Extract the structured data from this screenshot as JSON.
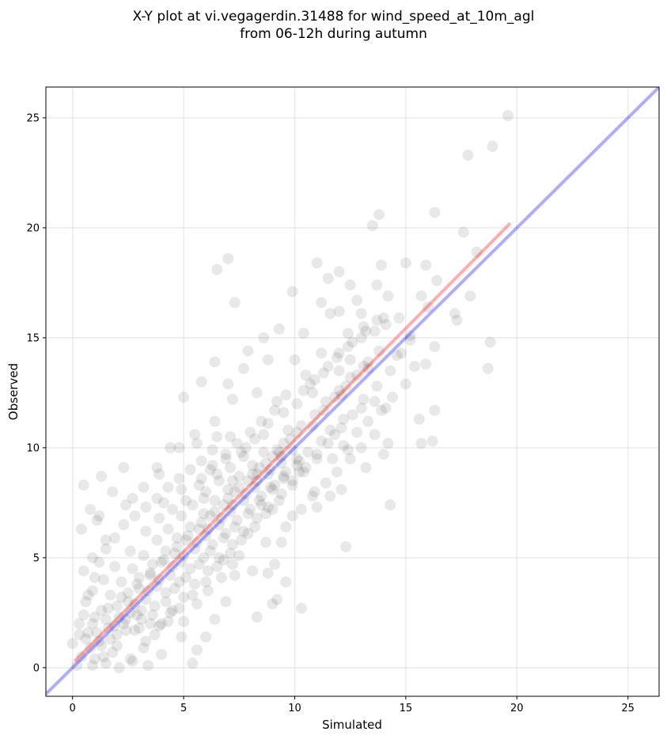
{
  "chart_data": {
    "type": "scatter",
    "title_line1": "X-Y plot at vi.vegagerdin.31488 for wind_speed_at_10m_agl",
    "title_line2": "from 06-12h during autumn",
    "xlabel": "Simulated",
    "ylabel": "Observed",
    "xlim": [
      -1.2,
      26.4
    ],
    "ylim": [
      -1.3,
      26.4
    ],
    "xticks": [
      0,
      5,
      10,
      15,
      20,
      25
    ],
    "yticks": [
      0,
      5,
      10,
      15,
      20,
      25
    ],
    "grid": true,
    "point_color": "#000000",
    "point_opacity": 0.09,
    "identity_line": {
      "color": "#0000ff",
      "opacity": 0.32,
      "from": [
        -1.2,
        -1.2
      ],
      "to": [
        26.4,
        26.4
      ]
    },
    "fit_line": {
      "color": "#ff0000",
      "opacity": 0.32,
      "from": [
        0.1,
        0.3
      ],
      "to": [
        19.7,
        20.2
      ]
    },
    "points": [
      [
        19.6,
        25.1
      ],
      [
        17.8,
        23.3
      ],
      [
        18.9,
        23.7
      ],
      [
        16.3,
        20.7
      ],
      [
        13.5,
        20.1
      ],
      [
        13.8,
        20.6
      ],
      [
        17.6,
        19.8
      ],
      [
        6.5,
        18.1
      ],
      [
        7.0,
        18.6
      ],
      [
        11.0,
        18.4
      ],
      [
        15.0,
        18.4
      ],
      [
        13.9,
        18.3
      ],
      [
        12.0,
        18.0
      ],
      [
        15.9,
        18.3
      ],
      [
        16.4,
        17.6
      ],
      [
        17.9,
        16.9
      ],
      [
        18.2,
        18.9
      ],
      [
        11.5,
        17.7
      ],
      [
        12.5,
        17.4
      ],
      [
        9.9,
        17.1
      ],
      [
        7.3,
        16.6
      ],
      [
        13.7,
        17.4
      ],
      [
        12.8,
        16.7
      ],
      [
        14.2,
        16.9
      ],
      [
        17.2,
        16.1
      ],
      [
        17.3,
        15.8
      ],
      [
        15.7,
        16.9
      ],
      [
        16.0,
        16.4
      ],
      [
        13.0,
        16.1
      ],
      [
        11.6,
        16.1
      ],
      [
        12.0,
        16.2
      ],
      [
        11.2,
        16.6
      ],
      [
        9.3,
        15.4
      ],
      [
        10.4,
        15.2
      ],
      [
        8.6,
        15.0
      ],
      [
        13.1,
        15.5
      ],
      [
        14.0,
        15.9
      ],
      [
        12.4,
        15.2
      ],
      [
        18.8,
        14.8
      ],
      [
        15.2,
        14.9
      ],
      [
        16.3,
        14.6
      ],
      [
        10.0,
        14.0
      ],
      [
        11.2,
        14.3
      ],
      [
        8.8,
        14.0
      ],
      [
        7.9,
        14.4
      ],
      [
        6.4,
        13.9
      ],
      [
        7.7,
        13.6
      ],
      [
        12.5,
        14.0
      ],
      [
        14.6,
        14.2
      ],
      [
        15.9,
        13.8
      ],
      [
        15.4,
        13.7
      ],
      [
        18.7,
        13.6
      ],
      [
        10.5,
        13.3
      ],
      [
        13.3,
        13.6
      ],
      [
        12.0,
        13.5
      ],
      [
        7.0,
        12.9
      ],
      [
        8.3,
        12.5
      ],
      [
        5.8,
        13.0
      ],
      [
        7.2,
        12.2
      ],
      [
        6.4,
        11.2
      ],
      [
        9.2,
        12.1
      ],
      [
        10.8,
        12.5
      ],
      [
        12.1,
        12.4
      ],
      [
        13.6,
        12.1
      ],
      [
        13.0,
        11.8
      ],
      [
        14.1,
        11.8
      ],
      [
        16.3,
        11.7
      ],
      [
        15.6,
        11.3
      ],
      [
        14.2,
        10.2
      ],
      [
        16.2,
        10.3
      ],
      [
        15.7,
        10.2
      ],
      [
        14.0,
        9.7
      ],
      [
        12.4,
        9.9
      ],
      [
        11.8,
        10.6
      ],
      [
        13.2,
        9.1
      ],
      [
        12.1,
        8.1
      ],
      [
        10.9,
        8.0
      ],
      [
        11.6,
        7.8
      ],
      [
        14.3,
        7.4
      ],
      [
        12.3,
        5.5
      ],
      [
        10.3,
        2.7
      ],
      [
        8.3,
        2.3
      ],
      [
        9.0,
        2.9
      ],
      [
        9.1,
        4.7
      ],
      [
        11.0,
        7.3
      ],
      [
        10.1,
        9.5
      ],
      [
        9.3,
        9.8
      ],
      [
        9.7,
        10.8
      ],
      [
        8.6,
        10.6
      ],
      [
        7.8,
        10.0
      ],
      [
        7.1,
        10.5
      ],
      [
        6.5,
        10.5
      ],
      [
        5.5,
        10.6
      ],
      [
        5.6,
        10.2
      ],
      [
        4.8,
        10.0
      ],
      [
        4.4,
        10.0
      ],
      [
        5.0,
        12.3
      ],
      [
        3.8,
        9.1
      ],
      [
        2.3,
        9.1
      ],
      [
        1.3,
        8.7
      ],
      [
        0.5,
        8.3
      ],
      [
        0.4,
        6.3
      ],
      [
        0.8,
        7.2
      ],
      [
        1.2,
        6.9
      ],
      [
        1.1,
        6.7
      ],
      [
        1.5,
        5.8
      ],
      [
        0.9,
        5.0
      ],
      [
        0.5,
        4.4
      ],
      [
        1.8,
        8.0
      ],
      [
        2.4,
        7.4
      ],
      [
        2.7,
        7.7
      ],
      [
        3.2,
        8.2
      ],
      [
        4.1,
        7.5
      ],
      [
        4.9,
        8.1
      ],
      [
        3.9,
        8.8
      ],
      [
        5.9,
        7.7
      ],
      [
        6.5,
        8.8
      ],
      [
        7.2,
        8.5
      ],
      [
        8.3,
        8.8
      ],
      [
        8.9,
        8.2
      ],
      [
        9.5,
        8.6
      ],
      [
        10.2,
        8.9
      ],
      [
        9.0,
        7.2
      ],
      [
        8.5,
        7.4
      ],
      [
        9.6,
        6.4
      ],
      [
        9.9,
        6.9
      ],
      [
        9.4,
        5.7
      ],
      [
        8.7,
        5.7
      ],
      [
        7.9,
        6.1
      ],
      [
        7.5,
        5.1
      ],
      [
        8.1,
        4.4
      ],
      [
        8.8,
        4.3
      ],
      [
        9.6,
        3.9
      ],
      [
        9.2,
        3.1
      ],
      [
        7.3,
        4.2
      ],
      [
        6.8,
        4.9
      ],
      [
        6.9,
        3.0
      ],
      [
        6.4,
        2.2
      ],
      [
        6.0,
        1.4
      ],
      [
        5.6,
        0.8
      ],
      [
        5.4,
        0.2
      ],
      [
        4.9,
        1.4
      ],
      [
        4.0,
        0.6
      ],
      [
        3.4,
        0.1
      ],
      [
        2.7,
        0.3
      ],
      [
        2.1,
        0.0
      ],
      [
        1.5,
        0.2
      ],
      [
        0.9,
        0.1
      ],
      [
        0.2,
        0.1
      ],
      [
        0.0,
        1.1
      ],
      [
        0.3,
        2.0
      ],
      [
        0.6,
        3.0
      ],
      [
        0.9,
        3.5
      ],
      [
        1.4,
        4.0
      ],
      [
        1.9,
        4.6
      ],
      [
        2.6,
        5.3
      ],
      [
        3.3,
        6.2
      ],
      [
        3.9,
        6.8
      ],
      [
        4.5,
        7.2
      ],
      [
        5.1,
        7.6
      ],
      [
        5.7,
        8.3
      ],
      [
        6.2,
        9.0
      ],
      [
        6.9,
        9.5
      ],
      [
        7.6,
        9.8
      ],
      [
        8.2,
        10.4
      ],
      [
        8.8,
        11.1
      ],
      [
        9.5,
        11.6
      ],
      [
        10.1,
        12.0
      ],
      [
        10.7,
        12.9
      ],
      [
        11.3,
        13.4
      ],
      [
        11.9,
        14.1
      ],
      [
        12.4,
        14.6
      ],
      [
        13.0,
        15.0
      ],
      [
        13.6,
        15.3
      ],
      [
        14.1,
        15.6
      ],
      [
        14.7,
        15.9
      ],
      [
        15.2,
        15.1
      ],
      [
        14.8,
        14.3
      ],
      [
        14.3,
        13.5
      ],
      [
        13.7,
        12.8
      ],
      [
        13.1,
        12.2
      ],
      [
        12.6,
        11.5
      ],
      [
        12.1,
        10.9
      ],
      [
        11.5,
        10.2
      ],
      [
        11.0,
        9.5
      ],
      [
        10.4,
        8.9
      ],
      [
        9.9,
        8.3
      ],
      [
        9.3,
        7.6
      ],
      [
        8.7,
        7.0
      ],
      [
        8.2,
        6.4
      ],
      [
        7.6,
        5.8
      ],
      [
        7.1,
        5.2
      ],
      [
        6.5,
        4.6
      ],
      [
        6.0,
        3.9
      ],
      [
        5.4,
        3.3
      ],
      [
        4.8,
        2.7
      ],
      [
        4.3,
        2.1
      ],
      [
        3.7,
        1.5
      ],
      [
        3.2,
        0.9
      ],
      [
        2.6,
        0.4
      ],
      [
        1.8,
        0.7
      ],
      [
        1.2,
        1.2
      ],
      [
        0.7,
        1.6
      ],
      [
        1.0,
        2.3
      ],
      [
        1.6,
        2.7
      ],
      [
        2.2,
        3.2
      ],
      [
        2.9,
        3.8
      ],
      [
        3.5,
        4.3
      ],
      [
        4.1,
        4.9
      ],
      [
        4.7,
        5.5
      ],
      [
        5.2,
        6.0
      ],
      [
        5.8,
        6.6
      ],
      [
        6.4,
        7.1
      ],
      [
        7.0,
        7.7
      ],
      [
        7.5,
        8.2
      ],
      [
        8.1,
        8.8
      ],
      [
        8.7,
        9.3
      ],
      [
        9.2,
        9.9
      ],
      [
        9.8,
        10.4
      ],
      [
        10.3,
        11.0
      ],
      [
        10.9,
        11.5
      ],
      [
        11.4,
        12.1
      ],
      [
        12.0,
        12.6
      ],
      [
        12.5,
        13.2
      ],
      [
        13.1,
        13.7
      ],
      [
        3.0,
        1.8
      ],
      [
        3.6,
        2.4
      ],
      [
        4.2,
        3.0
      ],
      [
        4.6,
        3.6
      ],
      [
        5.1,
        4.1
      ],
      [
        5.7,
        4.7
      ],
      [
        6.2,
        5.3
      ],
      [
        6.8,
        5.9
      ],
      [
        7.3,
        6.4
      ],
      [
        7.9,
        7.0
      ],
      [
        8.4,
        7.6
      ],
      [
        9.0,
        8.1
      ],
      [
        9.5,
        8.7
      ],
      [
        10.1,
        9.2
      ],
      [
        10.6,
        9.8
      ],
      [
        11.2,
        10.3
      ],
      [
        2.0,
        1.0
      ],
      [
        2.4,
        1.7
      ],
      [
        2.9,
        2.4
      ],
      [
        3.3,
        3.1
      ],
      [
        3.8,
        3.7
      ],
      [
        4.4,
        4.2
      ],
      [
        4.9,
        4.8
      ],
      [
        5.5,
        5.4
      ],
      [
        6.0,
        6.0
      ],
      [
        6.6,
        6.5
      ],
      [
        7.1,
        7.1
      ],
      [
        7.7,
        7.6
      ],
      [
        8.2,
        8.2
      ],
      [
        8.8,
        8.8
      ],
      [
        9.4,
        9.3
      ],
      [
        9.9,
        9.9
      ],
      [
        1.4,
        0.5
      ],
      [
        1.7,
        1.3
      ],
      [
        2.3,
        2.0
      ],
      [
        2.8,
        2.9
      ],
      [
        3.4,
        3.5
      ],
      [
        3.9,
        4.0
      ],
      [
        4.5,
        4.6
      ],
      [
        5.0,
        5.1
      ],
      [
        5.6,
        5.7
      ],
      [
        6.1,
        6.3
      ],
      [
        6.7,
        6.8
      ],
      [
        7.2,
        7.4
      ],
      [
        7.8,
        7.9
      ],
      [
        8.3,
        8.5
      ],
      [
        8.9,
        9.0
      ],
      [
        9.4,
        9.6
      ],
      [
        0.8,
        0.9
      ],
      [
        1.1,
        1.6
      ],
      [
        1.5,
        2.2
      ],
      [
        2.0,
        2.8
      ],
      [
        2.5,
        3.4
      ],
      [
        3.0,
        4.1
      ],
      [
        3.6,
        4.7
      ],
      [
        4.2,
        5.3
      ],
      [
        4.7,
        5.9
      ],
      [
        5.3,
        6.4
      ],
      [
        5.9,
        7.0
      ],
      [
        6.4,
        7.6
      ],
      [
        7.0,
        8.1
      ],
      [
        7.5,
        8.7
      ],
      [
        8.1,
        9.2
      ],
      [
        8.6,
        9.8
      ],
      [
        1.9,
        1.9
      ],
      [
        2.6,
        2.5
      ],
      [
        3.1,
        2.2
      ],
      [
        3.7,
        2.8
      ],
      [
        4.2,
        3.4
      ],
      [
        4.8,
        3.9
      ],
      [
        5.3,
        4.5
      ],
      [
        5.9,
        5.0
      ],
      [
        6.3,
        5.6
      ],
      [
        6.9,
        6.1
      ],
      [
        7.4,
        6.7
      ],
      [
        8.0,
        7.2
      ],
      [
        8.5,
        7.8
      ],
      [
        9.1,
        8.3
      ],
      [
        9.6,
        8.9
      ],
      [
        10.2,
        9.4
      ],
      [
        0.4,
        0.5
      ],
      [
        0.6,
        1.3
      ],
      [
        0.9,
        2.0
      ],
      [
        1.3,
        2.6
      ],
      [
        1.7,
        3.3
      ],
      [
        2.2,
        3.9
      ],
      [
        2.7,
        4.5
      ],
      [
        3.2,
        5.1
      ],
      [
        3.8,
        5.8
      ],
      [
        4.3,
        6.3
      ],
      [
        4.9,
        6.9
      ],
      [
        5.4,
        7.4
      ],
      [
        6.0,
        8.0
      ],
      [
        6.6,
        8.5
      ],
      [
        7.1,
        9.1
      ],
      [
        7.7,
        9.6
      ],
      [
        4.0,
        2.0
      ],
      [
        4.5,
        2.6
      ],
      [
        5.0,
        3.2
      ],
      [
        5.5,
        3.8
      ],
      [
        6.1,
        4.4
      ],
      [
        6.6,
        5.0
      ],
      [
        7.2,
        5.6
      ],
      [
        7.7,
        6.2
      ],
      [
        8.3,
        6.8
      ],
      [
        8.8,
        7.3
      ],
      [
        9.4,
        7.9
      ],
      [
        9.9,
        8.5
      ],
      [
        10.5,
        9.1
      ],
      [
        11.0,
        9.7
      ],
      [
        11.6,
        10.8
      ],
      [
        12.2,
        11.3
      ],
      [
        3.3,
        1.2
      ],
      [
        3.9,
        1.9
      ],
      [
        4.4,
        2.5
      ],
      [
        5.0,
        2.1
      ],
      [
        5.6,
        2.9
      ],
      [
        6.1,
        3.5
      ],
      [
        6.7,
        4.1
      ],
      [
        7.2,
        4.7
      ],
      [
        2.1,
        2.3
      ],
      [
        2.5,
        3.0
      ],
      [
        3.0,
        3.6
      ],
      [
        3.5,
        4.2
      ],
      [
        4.0,
        4.8
      ],
      [
        4.6,
        5.2
      ],
      [
        5.1,
        5.8
      ],
      [
        5.7,
        6.3
      ],
      [
        6.2,
        6.9
      ],
      [
        6.8,
        7.4
      ],
      [
        7.3,
        8.0
      ],
      [
        7.9,
        8.5
      ],
      [
        8.4,
        9.1
      ],
      [
        9.0,
        9.6
      ],
      [
        9.5,
        10.2
      ],
      [
        10.1,
        10.7
      ],
      [
        1.0,
        0.4
      ],
      [
        1.3,
        1.0
      ],
      [
        1.6,
        1.8
      ],
      [
        2.0,
        1.5
      ],
      [
        2.4,
        2.2
      ],
      [
        2.8,
        1.7
      ],
      [
        3.1,
        2.6
      ],
      [
        3.5,
        2.0
      ],
      [
        0.3,
        1.5
      ],
      [
        0.5,
        2.4
      ],
      [
        0.7,
        3.3
      ],
      [
        1.0,
        4.1
      ],
      [
        1.2,
        4.8
      ],
      [
        1.5,
        5.4
      ],
      [
        1.9,
        5.9
      ],
      [
        2.3,
        6.5
      ],
      [
        2.8,
        6.9
      ],
      [
        3.3,
        7.3
      ],
      [
        3.8,
        7.7
      ],
      [
        4.3,
        8.2
      ],
      [
        4.8,
        8.6
      ],
      [
        5.3,
        9.0
      ],
      [
        5.8,
        9.4
      ],
      [
        6.3,
        9.9
      ],
      [
        10.8,
        11.0
      ],
      [
        11.3,
        11.7
      ],
      [
        11.8,
        12.3
      ],
      [
        12.3,
        12.8
      ],
      [
        12.8,
        13.3
      ],
      [
        13.3,
        13.9
      ],
      [
        13.8,
        14.4
      ],
      [
        10.4,
        12.6
      ],
      [
        10.9,
        13.1
      ],
      [
        11.5,
        13.7
      ],
      [
        12.0,
        14.3
      ],
      [
        12.6,
        14.8
      ],
      [
        13.2,
        15.3
      ],
      [
        13.7,
        15.8
      ],
      [
        9.6,
        12.4
      ],
      [
        9.1,
        11.7
      ],
      [
        8.5,
        11.2
      ],
      [
        8.0,
        10.7
      ],
      [
        7.4,
        10.2
      ],
      [
        6.9,
        9.7
      ],
      [
        6.3,
        9.2
      ],
      [
        5.8,
        8.6
      ],
      [
        11.7,
        9.5
      ],
      [
        12.2,
        10.1
      ],
      [
        12.8,
        10.7
      ],
      [
        13.3,
        11.2
      ],
      [
        13.9,
        11.7
      ],
      [
        14.4,
        12.3
      ],
      [
        15.0,
        12.9
      ],
      [
        10.3,
        7.2
      ],
      [
        10.8,
        7.8
      ],
      [
        11.4,
        8.4
      ],
      [
        11.9,
        8.9
      ],
      [
        12.5,
        9.5
      ],
      [
        13.0,
        10.0
      ],
      [
        13.6,
        10.6
      ]
    ]
  }
}
